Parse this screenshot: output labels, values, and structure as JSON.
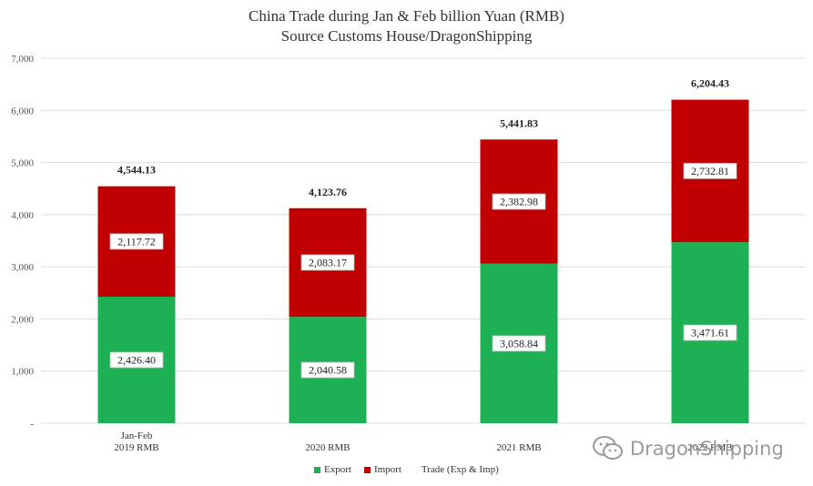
{
  "chart_data": {
    "type": "bar",
    "stacked": true,
    "title": "China Trade during Jan & Feb billion Yuan (RMB)",
    "subtitle": "Source Customs House/DragonShipping",
    "categories": [
      [
        "Jan-Feb",
        "2019 RMB"
      ],
      [
        "2020 RMB"
      ],
      [
        "2021 RMB"
      ],
      [
        "2022 RMB"
      ]
    ],
    "series": [
      {
        "name": "Export",
        "color": "#1db054",
        "values": [
          2426.4,
          2040.58,
          3058.84,
          3471.61
        ],
        "labels": [
          "2,426.40",
          "2,040.58",
          "3,058.84",
          "3,471.61"
        ]
      },
      {
        "name": "Import",
        "color": "#c00000",
        "values": [
          2117.72,
          2083.17,
          2382.98,
          2732.81
        ],
        "labels": [
          "2,117.72",
          "2,083.17",
          "2,382.98",
          "2,732.81"
        ]
      }
    ],
    "totals": {
      "name": "Trade (Exp & Imp)",
      "values": [
        4544.13,
        4123.76,
        5441.83,
        6204.43
      ],
      "labels": [
        "4,544.13",
        "4,123.76",
        "5,441.83",
        "6,204.43"
      ]
    },
    "ylim": [
      0,
      7000
    ],
    "yticks": [
      0,
      1000,
      2000,
      3000,
      4000,
      5000,
      6000,
      7000
    ],
    "ytick_labels": [
      "-",
      "1,000",
      "2,000",
      "3,000",
      "4,000",
      "5,000",
      "6,000",
      "7,000"
    ],
    "grid": true,
    "legend_position": "bottom"
  },
  "watermark": {
    "text": "DragonShipping",
    "icon": "wechat-icon"
  }
}
